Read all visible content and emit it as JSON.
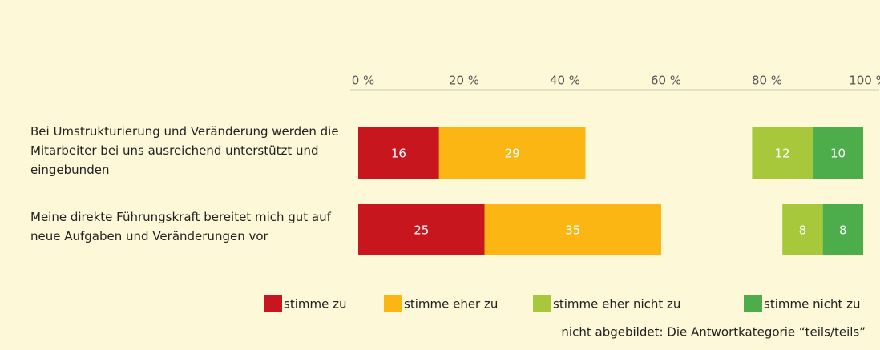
{
  "chart_data": {
    "type": "bar",
    "orientation": "horizontal",
    "stacked": true,
    "categories": [
      "Bei Umstrukturierung und Veränderung werden die Mitarbeiter bei uns ausreichend unterstützt und eingebunden",
      "Meine direkte Führungskraft bereitet mich gut auf neue Aufgaben und Veränderungen vor"
    ],
    "series": [
      {
        "name": "stimme zu",
        "color": "#c8161e",
        "values": [
          16,
          25
        ]
      },
      {
        "name": "stimme eher zu",
        "color": "#fbb614",
        "values": [
          29,
          35
        ]
      },
      {
        "name": "stimme eher nicht zu",
        "color": "#a6c83a",
        "values": [
          12,
          8
        ]
      },
      {
        "name": "stimme nicht zu",
        "color": "#4cad4a",
        "values": [
          10,
          8
        ]
      }
    ],
    "xlim": [
      0,
      100
    ],
    "xticks": [
      {
        "value": 0,
        "label": "0 %"
      },
      {
        "value": 20,
        "label": "20 %"
      },
      {
        "value": 40,
        "label": "40 %"
      },
      {
        "value": 60,
        "label": "60 %"
      },
      {
        "value": 80,
        "label": "80 %"
      },
      {
        "value": 100,
        "label": "100 %"
      }
    ],
    "note": "nicht abgebildet: Die Antwortkategorie “teils/teils”"
  }
}
